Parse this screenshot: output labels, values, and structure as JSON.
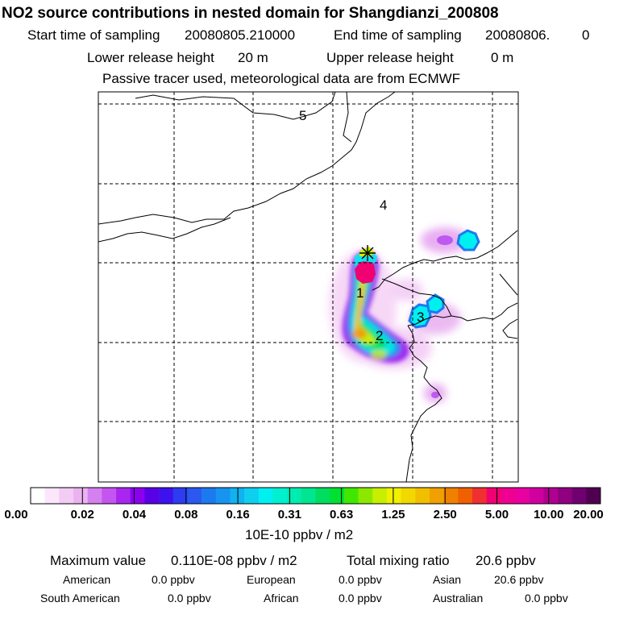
{
  "title": "NO2 source contributions in nested domain for Shangdianzi_200808",
  "sampling": {
    "start_label": "Start time of sampling",
    "start_value": "20080805.210000",
    "end_label": "End time of sampling",
    "end_value": "20080806.",
    "end_suffix": "0"
  },
  "release": {
    "lower_label": "Lower release height",
    "lower_value": "20 m",
    "upper_label": "Upper release height",
    "upper_value": "0 m"
  },
  "note": "Passive tracer used, meteorological data are from ECMWF",
  "map": {
    "region_labels": [
      "5",
      "4",
      "1",
      "3",
      "2"
    ],
    "receptor_marker": "station-asterisk"
  },
  "colorbar": {
    "tick_labels": [
      "0.00",
      "0.02",
      "0.04",
      "0.08",
      "0.16",
      "0.31",
      "0.63",
      "1.25",
      "2.50",
      "5.00",
      "10.00",
      "20.00"
    ],
    "colors": [
      "#ffffff",
      "#fbe6fb",
      "#f3ccf5",
      "#eab3f0",
      "#d580f0",
      "#c455f0",
      "#a926f0",
      "#8c00f0",
      "#5a00e6",
      "#3d12ee",
      "#2d3cf0",
      "#2a58f0",
      "#1c7af0",
      "#1694f0",
      "#10b2f0",
      "#0ecff0",
      "#00f0f0",
      "#00f0d0",
      "#00ecb0",
      "#00e690",
      "#00dd60",
      "#00e030",
      "#40e800",
      "#8ce800",
      "#c8ee00",
      "#f0f000",
      "#f0d800",
      "#f0c000",
      "#f0a000",
      "#f08000",
      "#f06000",
      "#f03030",
      "#f00070",
      "#f00090",
      "#e800a0",
      "#d000a0",
      "#b00090",
      "#900080",
      "#700070",
      "#500050"
    ],
    "units": "10E-10 ppbv / m2"
  },
  "stats": {
    "max_label": "Maximum value",
    "max_value": "0.110E-08 ppbv / m2",
    "total_label": "Total mixing ratio",
    "total_value": "20.6 ppbv",
    "regions": [
      {
        "name": "American",
        "value": "0.0 ppbv"
      },
      {
        "name": "European",
        "value": "0.0 ppbv"
      },
      {
        "name": "Asian",
        "value": "20.6 ppbv"
      },
      {
        "name": "South American",
        "value": "0.0 ppbv"
      },
      {
        "name": "African",
        "value": "0.0 ppbv"
      },
      {
        "name": "Australian",
        "value": "0.0 ppbv"
      }
    ]
  }
}
